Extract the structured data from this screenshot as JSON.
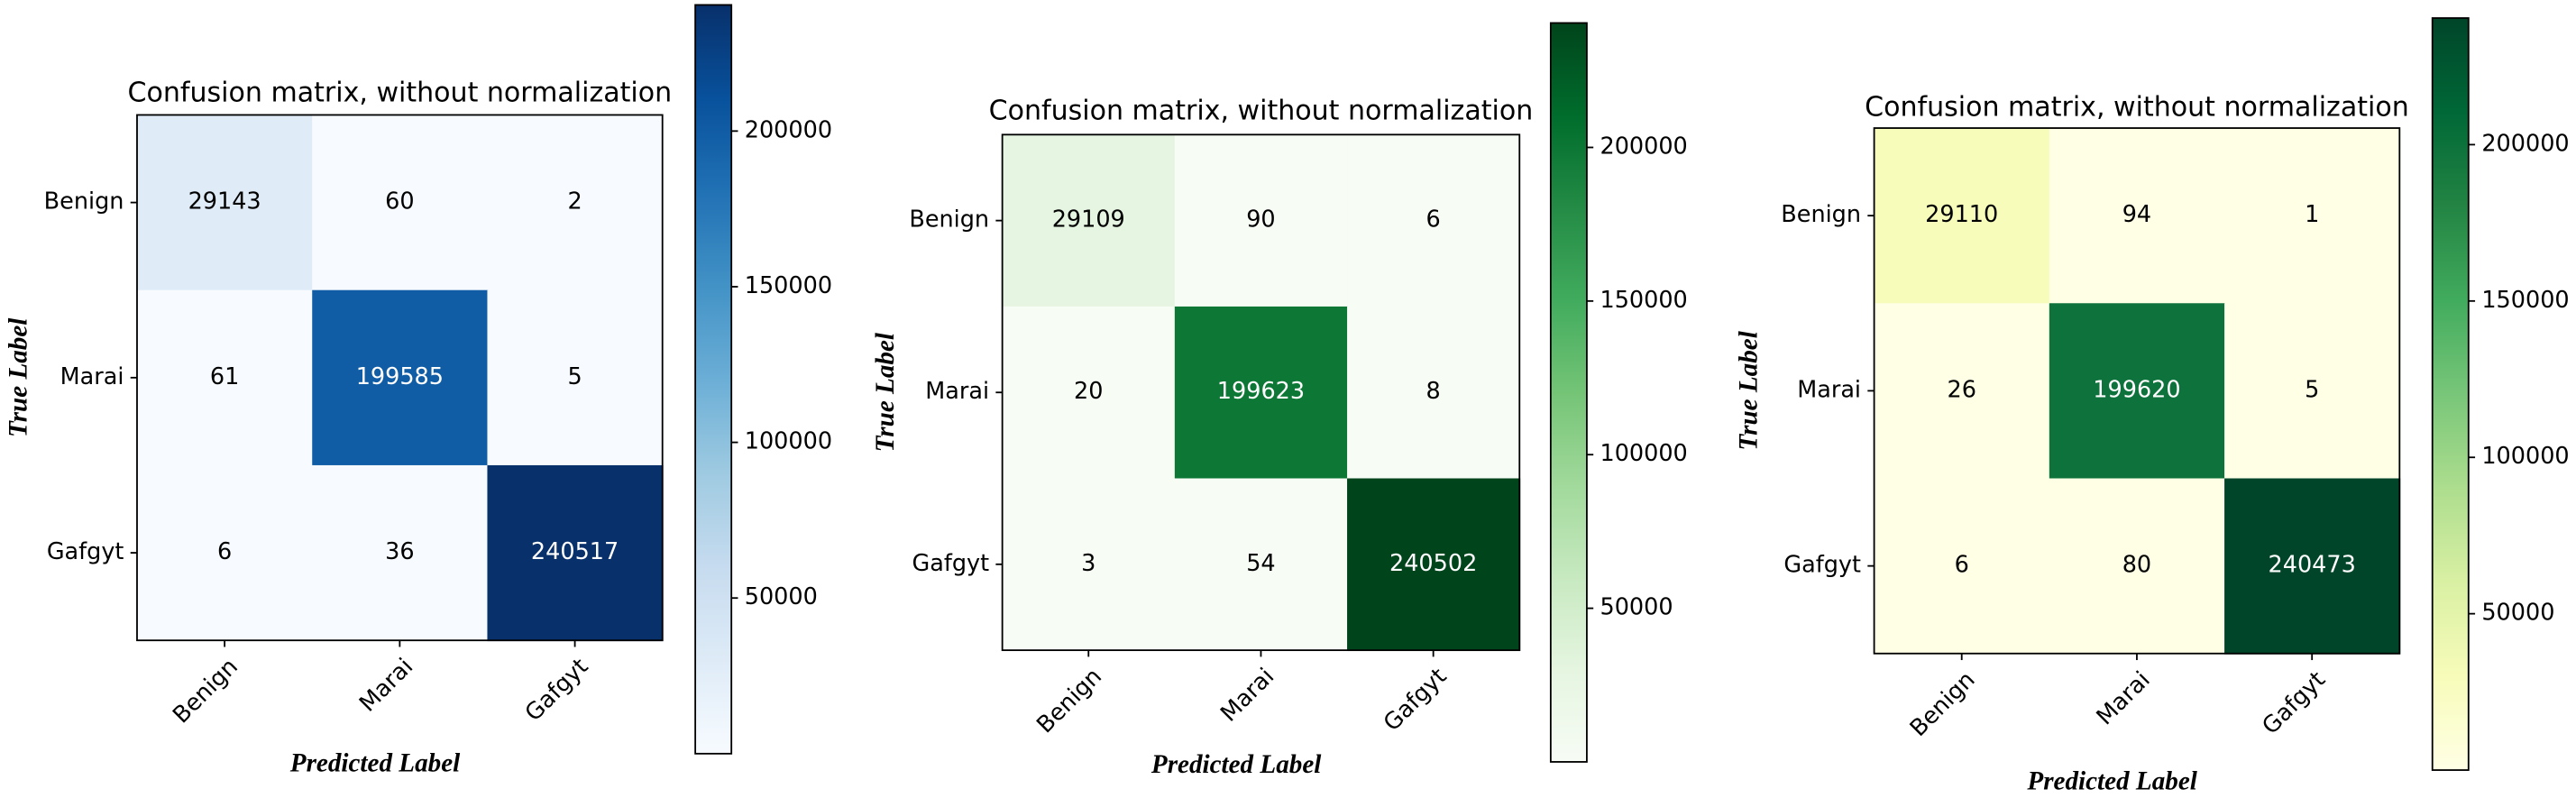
{
  "chart_data": [
    {
      "type": "heatmap",
      "title": "Confusion matrix, without normalization",
      "x_label": "Predicted Label",
      "y_label": "True Label",
      "x_categories": [
        "Benign",
        "Marai",
        "Gafgyt"
      ],
      "y_categories": [
        "Benign",
        "Marai",
        "Gafgyt"
      ],
      "values": [
        [
          29143,
          60,
          2
        ],
        [
          61,
          199585,
          5
        ],
        [
          6,
          36,
          240517
        ]
      ],
      "colormap": "Blues",
      "clim": [
        2,
        240517
      ],
      "colorbar_ticks": [
        50000,
        100000,
        150000,
        200000
      ]
    },
    {
      "type": "heatmap",
      "title": "Confusion matrix, without normalization",
      "x_label": "Predicted Label",
      "y_label": "True Label",
      "x_categories": [
        "Benign",
        "Marai",
        "Gafgyt"
      ],
      "y_categories": [
        "Benign",
        "Marai",
        "Gafgyt"
      ],
      "values": [
        [
          29109,
          90,
          6
        ],
        [
          20,
          199623,
          8
        ],
        [
          3,
          54,
          240502
        ]
      ],
      "colormap": "Greens",
      "clim": [
        3,
        240502
      ],
      "colorbar_ticks": [
        50000,
        100000,
        150000,
        200000
      ]
    },
    {
      "type": "heatmap",
      "title": "Confusion matrix, without normalization",
      "x_label": "Predicted Label",
      "y_label": "True Label",
      "x_categories": [
        "Benign",
        "Marai",
        "Gafgyt"
      ],
      "y_categories": [
        "Benign",
        "Marai",
        "Gafgyt"
      ],
      "values": [
        [
          29110,
          94,
          1
        ],
        [
          26,
          199620,
          5
        ],
        [
          6,
          80,
          240473
        ]
      ],
      "colormap": "YlGn",
      "clim": [
        1,
        240473
      ],
      "colorbar_ticks": [
        50000,
        100000,
        150000,
        200000
      ]
    }
  ]
}
